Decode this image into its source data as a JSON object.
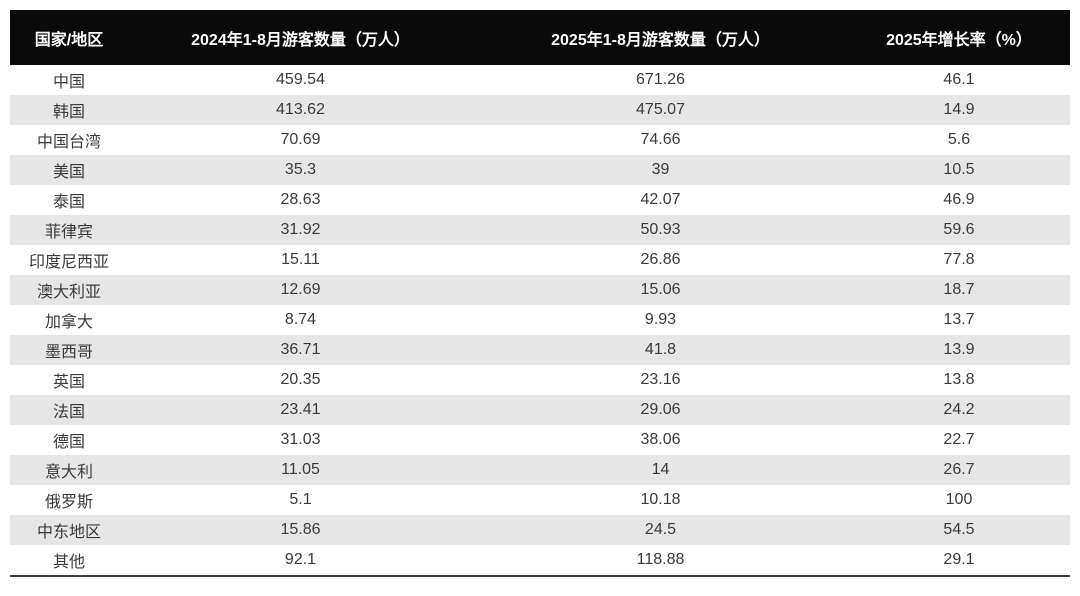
{
  "chart_data": {
    "type": "table",
    "title": "",
    "columns": [
      "国家/地区",
      "2024年1-8月游客数量（万人）",
      "2025年1-8月游客数量（万人）",
      "2025年增长率（%）"
    ],
    "rows": [
      [
        "中国",
        "459.54",
        "671.26",
        "46.1"
      ],
      [
        "韩国",
        "413.62",
        "475.07",
        "14.9"
      ],
      [
        "中国台湾",
        "70.69",
        "74.66",
        "5.6"
      ],
      [
        "美国",
        "35.3",
        "39",
        "10.5"
      ],
      [
        "泰国",
        "28.63",
        "42.07",
        "46.9"
      ],
      [
        "菲律宾",
        "31.92",
        "50.93",
        "59.6"
      ],
      [
        "印度尼西亚",
        "15.11",
        "26.86",
        "77.8"
      ],
      [
        "澳大利亚",
        "12.69",
        "15.06",
        "18.7"
      ],
      [
        "加拿大",
        "8.74",
        "9.93",
        "13.7"
      ],
      [
        "墨西哥",
        "36.71",
        "41.8",
        "13.9"
      ],
      [
        "英国",
        "20.35",
        "23.16",
        "13.8"
      ],
      [
        "法国",
        "23.41",
        "29.06",
        "24.2"
      ],
      [
        "德国",
        "31.03",
        "38.06",
        "22.7"
      ],
      [
        "意大利",
        "11.05",
        "14",
        "26.7"
      ],
      [
        "俄罗斯",
        "5.1",
        "10.18",
        "100"
      ],
      [
        "中东地区",
        "15.86",
        "24.5",
        "54.5"
      ],
      [
        "其他",
        "92.1",
        "118.88",
        "29.1"
      ]
    ],
    "layout": {
      "striped": true,
      "first_data_row_bg": "white",
      "column_alignment": "center"
    }
  },
  "colors": {
    "header_bg": "#0a0a0a",
    "header_text": "#ffffff",
    "row_bg": "#ffffff",
    "row_alt_bg": "#e6e6e6",
    "body_text": "#3a3a3a",
    "bottom_rule": "#3f3f3f"
  }
}
